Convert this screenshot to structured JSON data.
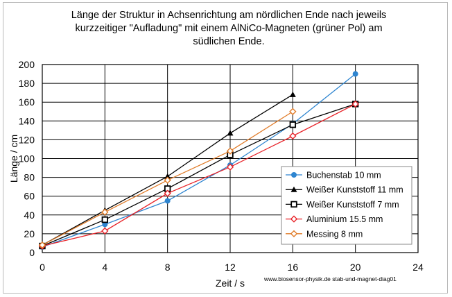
{
  "chart_data": {
    "type": "line",
    "title_lines": [
      "Länge der Struktur in Achsenrichtung am nördlichen Ende nach jeweils",
      "kurzzeitiger  \"Aufladung\" mit einem AlNiCo-Magneten (grüner Pol) am",
      "südlichen Ende."
    ],
    "xlabel": "Zeit / s",
    "ylabel": "Länge / cm",
    "xlim": [
      0,
      24
    ],
    "ylim": [
      0,
      200
    ],
    "xticks": [
      0,
      4,
      8,
      12,
      16,
      20,
      24
    ],
    "yticks": [
      0,
      20,
      40,
      60,
      80,
      100,
      120,
      140,
      160,
      180,
      200
    ],
    "grid": true,
    "legend_position": "bottom-right",
    "footer": "www.biosensor-physik.de  stab-und-magnet-diag01",
    "series": [
      {
        "name": "Buchenstab 10 mm",
        "color": "#2e85d0",
        "marker": "circle",
        "x": [
          0,
          4,
          8,
          12,
          16,
          20
        ],
        "y": [
          6,
          30,
          55,
          93,
          137,
          190
        ]
      },
      {
        "name": "Weißer Kunststoff 11 mm",
        "color": "#000000",
        "marker": "triangle",
        "x": [
          0,
          4,
          8,
          12,
          16
        ],
        "y": [
          8,
          45,
          81,
          127,
          168
        ]
      },
      {
        "name": "Weißer Kunststoff 7 mm",
        "color": "#000000",
        "marker": "square",
        "x": [
          0,
          4,
          8,
          12,
          16,
          20
        ],
        "y": [
          7,
          35,
          68,
          104,
          136,
          158
        ]
      },
      {
        "name": "Aluminium 15.5 mm",
        "color": "#e8242a",
        "marker": "diamond",
        "x": [
          0,
          4,
          8,
          12,
          16,
          20
        ],
        "y": [
          7,
          23,
          63,
          91,
          124,
          158
        ]
      },
      {
        "name": "Messing 8 mm",
        "color": "#e07b28",
        "marker": "diamond",
        "x": [
          0,
          4,
          8,
          12,
          16
        ],
        "y": [
          8,
          43,
          77,
          108,
          150
        ]
      }
    ]
  }
}
